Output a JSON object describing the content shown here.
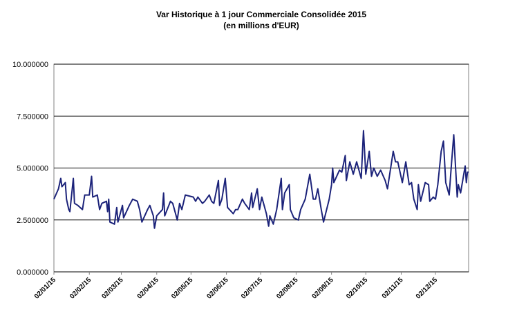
{
  "chart_data": {
    "type": "line",
    "title": "Var Historique à 1 jour Commerciale Consolidée 2015",
    "subtitle": "(en millions d'EUR)",
    "x": [
      "02/01/15",
      "06/01/15",
      "08/01/15",
      "09/01/15",
      "12/01/15",
      "13/01/15",
      "15/01/15",
      "16/01/15",
      "19/01/15",
      "20/01/15",
      "23/01/15",
      "27/01/15",
      "29/01/15",
      "02/02/15",
      "04/02/15",
      "05/02/15",
      "09/02/15",
      "11/02/15",
      "13/02/15",
      "17/02/15",
      "18/02/15",
      "19/02/15",
      "20/02/15",
      "24/02/15",
      "26/02/15",
      "27/02/15",
      "03/03/15",
      "04/03/15",
      "09/03/15",
      "12/03/15",
      "16/03/15",
      "18/03/15",
      "20/03/15",
      "25/03/15",
      "27/03/15",
      "30/03/15",
      "31/03/15",
      "02/04/15",
      "07/04/15",
      "08/04/15",
      "09/04/15",
      "14/04/15",
      "16/04/15",
      "20/04/15",
      "22/04/15",
      "24/04/15",
      "27/04/15",
      "04/05/15",
      "06/05/15",
      "08/05/15",
      "12/05/15",
      "14/05/15",
      "18/05/15",
      "20/05/15",
      "22/05/15",
      "26/05/15",
      "27/05/15",
      "29/05/15",
      "01/06/15",
      "03/06/15",
      "08/06/15",
      "10/06/15",
      "12/06/15",
      "16/06/15",
      "18/06/15",
      "22/06/15",
      "24/06/15",
      "25/06/15",
      "29/06/15",
      "01/07/15",
      "03/07/15",
      "07/07/15",
      "09/07/15",
      "10/07/15",
      "13/07/15",
      "16/07/15",
      "20/07/15",
      "21/07/15",
      "23/07/15",
      "27/07/15",
      "28/07/15",
      "31/07/15",
      "04/08/15",
      "06/08/15",
      "10/08/15",
      "14/08/15",
      "17/08/15",
      "19/08/15",
      "21/08/15",
      "24/08/15",
      "26/08/15",
      "31/08/15",
      "02/09/15",
      "03/09/15",
      "04/09/15",
      "09/09/15",
      "11/09/15",
      "14/09/15",
      "15/09/15",
      "18/09/15",
      "21/09/15",
      "24/09/15",
      "28/09/15",
      "30/09/15",
      "02/10/15",
      "05/10/15",
      "07/10/15",
      "09/10/15",
      "12/10/15",
      "15/10/15",
      "19/10/15",
      "21/10/15",
      "26/10/15",
      "28/10/15",
      "30/10/15",
      "03/11/15",
      "06/11/15",
      "09/11/15",
      "11/11/15",
      "13/11/15",
      "16/11/15",
      "17/11/15",
      "19/11/15",
      "23/11/15",
      "26/11/15",
      "27/11/15",
      "30/11/15",
      "02/12/15",
      "04/12/15",
      "07/12/15",
      "09/12/15",
      "11/12/15",
      "14/12/15",
      "16/12/15",
      "18/12/15",
      "21/12/15",
      "22/12/15",
      "24/12/15",
      "28/12/15",
      "29/12/15",
      "30/12/15",
      "31/12/15"
    ],
    "series": [
      {
        "name": "Var",
        "color": "#1c237a",
        "values": [
          3.5,
          4.0,
          4.5,
          4.1,
          4.3,
          3.5,
          3.0,
          2.9,
          4.5,
          3.3,
          3.2,
          3.0,
          3.7,
          3.7,
          4.6,
          3.6,
          3.7,
          3.0,
          3.3,
          3.4,
          2.9,
          3.5,
          2.4,
          2.3,
          3.1,
          2.4,
          3.2,
          2.6,
          3.2,
          3.5,
          3.4,
          3.0,
          2.4,
          3.0,
          3.2,
          2.7,
          2.1,
          2.7,
          3.0,
          3.8,
          2.7,
          3.4,
          3.3,
          2.5,
          3.3,
          3.0,
          3.7,
          3.6,
          3.4,
          3.6,
          3.3,
          3.4,
          3.7,
          3.4,
          3.3,
          4.4,
          3.2,
          3.5,
          4.5,
          3.1,
          2.8,
          3.0,
          3.0,
          3.5,
          3.3,
          3.0,
          3.8,
          3.1,
          4.0,
          3.0,
          3.6,
          2.8,
          2.2,
          2.7,
          2.3,
          3.0,
          4.5,
          3.0,
          3.8,
          4.2,
          3.0,
          2.6,
          2.5,
          3.0,
          3.5,
          4.7,
          3.5,
          3.5,
          4.0,
          3.0,
          2.4,
          3.5,
          4.2,
          5.0,
          4.3,
          4.9,
          4.8,
          5.6,
          4.4,
          5.3,
          4.7,
          5.3,
          4.5,
          6.8,
          4.7,
          5.8,
          4.6,
          5.0,
          4.6,
          4.9,
          4.4,
          4.0,
          5.8,
          5.3,
          5.3,
          4.3,
          5.3,
          4.2,
          4.3,
          3.5,
          3.0,
          4.2,
          3.4,
          4.3,
          4.2,
          3.4,
          3.6,
          3.5,
          4.2,
          5.8,
          6.3,
          4.3,
          3.7,
          5.2,
          6.6,
          3.6,
          4.2,
          3.8,
          5.1,
          4.3,
          4.8,
          4.8
        ]
      }
    ],
    "xlim": [
      "02/01/15",
      "31/12/15"
    ],
    "xticks": [
      "02/01/15",
      "02/02/15",
      "02/03/15",
      "02/04/15",
      "02/05/15",
      "02/06/15",
      "02/07/15",
      "02/08/15",
      "02/09/15",
      "02/10/15",
      "02/11/15",
      "02/12/15"
    ],
    "ylim": [
      0,
      10
    ],
    "yticks": [
      {
        "value": 0,
        "label": "0.000000"
      },
      {
        "value": 2.5,
        "label": "2.500000"
      },
      {
        "value": 5,
        "label": "5.000000"
      },
      {
        "value": 7.5,
        "label": "7.500000"
      },
      {
        "value": 10,
        "label": "10.000000"
      }
    ],
    "grid": true
  }
}
